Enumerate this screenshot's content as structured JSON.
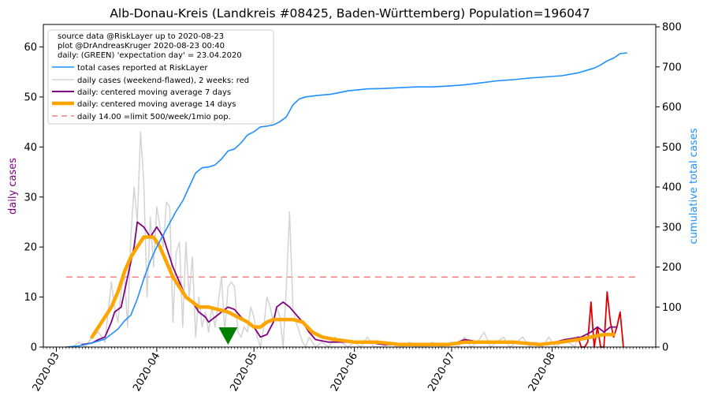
{
  "chart_data": {
    "type": "line",
    "title": "Alb-Donau-Kreis (Landkreis #08425, Baden-Württemberg) Population=196047",
    "ylabel_left": "daily cases",
    "ylabel_right": "cumulative total cases",
    "colors": {
      "total": "#1e90ff",
      "daily_raw": "#d3d3d3",
      "daily_recent": "#e00000",
      "ma7": "#800080",
      "ma14": "#ffa500",
      "limit": "#f08080",
      "expectation_marker": "#008000",
      "left_label": "#800080",
      "right_label": "#1e90ff"
    },
    "x_range": [
      "2020-02-26",
      "2020-09-02"
    ],
    "x_ticks": [
      "2020-03",
      "2020-04",
      "2020-05",
      "2020-06",
      "2020-07",
      "2020-08"
    ],
    "ylim_left": [
      0,
      64.5
    ],
    "yticks_left": [
      "0",
      "10",
      "20",
      "30",
      "40",
      "50",
      "60"
    ],
    "ylim_right": [
      0,
      806
    ],
    "yticks_right": [
      "0",
      "100",
      "200",
      "300",
      "400",
      "500",
      "600",
      "700",
      "800"
    ],
    "legend": {
      "placement": "top-left",
      "text_lines": [
        "source data @RiskLayer up to 2020-08-23",
        "plot @DrAndreasKruger 2020-08-23 00:40",
        "daily: (GREEN) 'expectation day' = 23.04.2020"
      ],
      "entries": [
        {
          "label": "total cases reported at RiskLayer",
          "series": "total"
        },
        {
          "label": "daily cases (weekend-flawed), 2 weeks: red",
          "series": "daily_raw"
        },
        {
          "label": "daily: centered moving average 7 days",
          "series": "ma7"
        },
        {
          "label": "daily: centered moving average 14 days",
          "series": "ma14"
        },
        {
          "label": "daily 14.00 =limit 500/week/1mio pop.",
          "series": "limit"
        }
      ]
    },
    "limit_value": 14.0,
    "limit_range": [
      "2020-03-04",
      "2020-08-28"
    ],
    "expectation_day": "2020-04-23",
    "series": {
      "total": [
        [
          "2020-03-04",
          0
        ],
        [
          "2020-03-08",
          3
        ],
        [
          "2020-03-12",
          10
        ],
        [
          "2020-03-16",
          20
        ],
        [
          "2020-03-20",
          45
        ],
        [
          "2020-03-22",
          65
        ],
        [
          "2020-03-24",
          80
        ],
        [
          "2020-03-26",
          120
        ],
        [
          "2020-03-28",
          170
        ],
        [
          "2020-03-30",
          215
        ],
        [
          "2020-04-01",
          250
        ],
        [
          "2020-04-03",
          280
        ],
        [
          "2020-04-05",
          310
        ],
        [
          "2020-04-07",
          340
        ],
        [
          "2020-04-09",
          365
        ],
        [
          "2020-04-11",
          400
        ],
        [
          "2020-04-13",
          435
        ],
        [
          "2020-04-15",
          448
        ],
        [
          "2020-04-17",
          450
        ],
        [
          "2020-04-19",
          455
        ],
        [
          "2020-04-21",
          470
        ],
        [
          "2020-04-23",
          490
        ],
        [
          "2020-04-25",
          495
        ],
        [
          "2020-04-27",
          510
        ],
        [
          "2020-04-29",
          530
        ],
        [
          "2020-05-01",
          538
        ],
        [
          "2020-05-03",
          550
        ],
        [
          "2020-05-05",
          552
        ],
        [
          "2020-05-07",
          555
        ],
        [
          "2020-05-09",
          563
        ],
        [
          "2020-05-11",
          575
        ],
        [
          "2020-05-13",
          605
        ],
        [
          "2020-05-15",
          620
        ],
        [
          "2020-05-17",
          625
        ],
        [
          "2020-05-20",
          628
        ],
        [
          "2020-05-25",
          632
        ],
        [
          "2020-05-30",
          640
        ],
        [
          "2020-06-05",
          645
        ],
        [
          "2020-06-10",
          646
        ],
        [
          "2020-06-15",
          648
        ],
        [
          "2020-06-20",
          650
        ],
        [
          "2020-06-25",
          650
        ],
        [
          "2020-06-30",
          652
        ],
        [
          "2020-07-05",
          655
        ],
        [
          "2020-07-10",
          660
        ],
        [
          "2020-07-15",
          665
        ],
        [
          "2020-07-20",
          668
        ],
        [
          "2020-07-25",
          672
        ],
        [
          "2020-07-30",
          675
        ],
        [
          "2020-08-04",
          678
        ],
        [
          "2020-08-09",
          685
        ],
        [
          "2020-08-12",
          692
        ],
        [
          "2020-08-14",
          697
        ],
        [
          "2020-08-16",
          705
        ],
        [
          "2020-08-18",
          715
        ],
        [
          "2020-08-20",
          722
        ],
        [
          "2020-08-22",
          733
        ],
        [
          "2020-08-24",
          735
        ]
      ],
      "daily_raw": [
        [
          "2020-03-06",
          0
        ],
        [
          "2020-03-08",
          1
        ],
        [
          "2020-03-10",
          0
        ],
        [
          "2020-03-12",
          2
        ],
        [
          "2020-03-14",
          3
        ],
        [
          "2020-03-16",
          1
        ],
        [
          "2020-03-17",
          7
        ],
        [
          "2020-03-18",
          13
        ],
        [
          "2020-03-19",
          8
        ],
        [
          "2020-03-20",
          5
        ],
        [
          "2020-03-21",
          11
        ],
        [
          "2020-03-22",
          15
        ],
        [
          "2020-03-23",
          4
        ],
        [
          "2020-03-24",
          22
        ],
        [
          "2020-03-25",
          32
        ],
        [
          "2020-03-26",
          25
        ],
        [
          "2020-03-27",
          43
        ],
        [
          "2020-03-28",
          33
        ],
        [
          "2020-03-29",
          10
        ],
        [
          "2020-03-30",
          26
        ],
        [
          "2020-03-31",
          16
        ],
        [
          "2020-04-01",
          28
        ],
        [
          "2020-04-02",
          24
        ],
        [
          "2020-04-03",
          20
        ],
        [
          "2020-04-04",
          29
        ],
        [
          "2020-04-05",
          28
        ],
        [
          "2020-04-06",
          5
        ],
        [
          "2020-04-07",
          19
        ],
        [
          "2020-04-08",
          21
        ],
        [
          "2020-04-09",
          4
        ],
        [
          "2020-04-10",
          21
        ],
        [
          "2020-04-11",
          10
        ],
        [
          "2020-04-12",
          18
        ],
        [
          "2020-04-13",
          2
        ],
        [
          "2020-04-14",
          10
        ],
        [
          "2020-04-15",
          4
        ],
        [
          "2020-04-16",
          7
        ],
        [
          "2020-04-17",
          3
        ],
        [
          "2020-04-18",
          8
        ],
        [
          "2020-04-19",
          4
        ],
        [
          "2020-04-20",
          9
        ],
        [
          "2020-04-21",
          14
        ],
        [
          "2020-04-22",
          3
        ],
        [
          "2020-04-23",
          12
        ],
        [
          "2020-04-24",
          13
        ],
        [
          "2020-04-25",
          12
        ],
        [
          "2020-04-26",
          3
        ],
        [
          "2020-04-27",
          2
        ],
        [
          "2020-04-28",
          4
        ],
        [
          "2020-04-29",
          3
        ],
        [
          "2020-04-30",
          8
        ],
        [
          "2020-05-01",
          6
        ],
        [
          "2020-05-02",
          2
        ],
        [
          "2020-05-03",
          0
        ],
        [
          "2020-05-04",
          4
        ],
        [
          "2020-05-05",
          10
        ],
        [
          "2020-05-06",
          8
        ],
        [
          "2020-05-07",
          5
        ],
        [
          "2020-05-08",
          8
        ],
        [
          "2020-05-09",
          6
        ],
        [
          "2020-05-10",
          0
        ],
        [
          "2020-05-11",
          12
        ],
        [
          "2020-05-12",
          27
        ],
        [
          "2020-05-13",
          8
        ],
        [
          "2020-05-14",
          5
        ],
        [
          "2020-05-15",
          3
        ],
        [
          "2020-05-16",
          1
        ],
        [
          "2020-05-17",
          0
        ],
        [
          "2020-05-18",
          2
        ],
        [
          "2020-05-19",
          1
        ],
        [
          "2020-05-20",
          0
        ],
        [
          "2020-05-22",
          1
        ],
        [
          "2020-05-24",
          0
        ],
        [
          "2020-05-26",
          2
        ],
        [
          "2020-05-28",
          1
        ],
        [
          "2020-05-30",
          0
        ],
        [
          "2020-06-01",
          1
        ],
        [
          "2020-06-03",
          0
        ],
        [
          "2020-06-05",
          2
        ],
        [
          "2020-06-06",
          1
        ],
        [
          "2020-06-07",
          0
        ],
        [
          "2020-06-10",
          0
        ],
        [
          "2020-06-12",
          1
        ],
        [
          "2020-06-14",
          0
        ],
        [
          "2020-06-16",
          0
        ],
        [
          "2020-06-18",
          1
        ],
        [
          "2020-06-20",
          0
        ],
        [
          "2020-06-23",
          0
        ],
        [
          "2020-06-25",
          1
        ],
        [
          "2020-06-28",
          0
        ],
        [
          "2020-07-01",
          1
        ],
        [
          "2020-07-03",
          0
        ],
        [
          "2020-07-05",
          2
        ],
        [
          "2020-07-07",
          0
        ],
        [
          "2020-07-09",
          1
        ],
        [
          "2020-07-11",
          3
        ],
        [
          "2020-07-13",
          0
        ],
        [
          "2020-07-15",
          1
        ],
        [
          "2020-07-17",
          2
        ],
        [
          "2020-07-19",
          0
        ],
        [
          "2020-07-21",
          1
        ],
        [
          "2020-07-23",
          2
        ],
        [
          "2020-07-25",
          0
        ],
        [
          "2020-07-27",
          1
        ],
        [
          "2020-07-29",
          0
        ],
        [
          "2020-07-31",
          2
        ],
        [
          "2020-08-02",
          0
        ],
        [
          "2020-08-04",
          1
        ],
        [
          "2020-08-06",
          1
        ],
        [
          "2020-08-08",
          0
        ],
        [
          "2020-08-09",
          2
        ]
      ],
      "daily_recent": [
        [
          "2020-08-09",
          2
        ],
        [
          "2020-08-10",
          0
        ],
        [
          "2020-08-11",
          0
        ],
        [
          "2020-08-12",
          1
        ],
        [
          "2020-08-13",
          9
        ],
        [
          "2020-08-14",
          0
        ],
        [
          "2020-08-15",
          4
        ],
        [
          "2020-08-16",
          0
        ],
        [
          "2020-08-17",
          0
        ],
        [
          "2020-08-18",
          11
        ],
        [
          "2020-08-19",
          5
        ],
        [
          "2020-08-20",
          2
        ],
        [
          "2020-08-21",
          4
        ],
        [
          "2020-08-22",
          7
        ],
        [
          "2020-08-23",
          0
        ]
      ],
      "ma7": [
        [
          "2020-03-09",
          0.5
        ],
        [
          "2020-03-12",
          0.8
        ],
        [
          "2020-03-14",
          1.5
        ],
        [
          "2020-03-16",
          2
        ],
        [
          "2020-03-18",
          5
        ],
        [
          "2020-03-19",
          7
        ],
        [
          "2020-03-21",
          8
        ],
        [
          "2020-03-23",
          14
        ],
        [
          "2020-03-25",
          20
        ],
        [
          "2020-03-26",
          25
        ],
        [
          "2020-03-28",
          24
        ],
        [
          "2020-03-29",
          23
        ],
        [
          "2020-03-30",
          22
        ],
        [
          "2020-04-01",
          24
        ],
        [
          "2020-04-03",
          22
        ],
        [
          "2020-04-05",
          18
        ],
        [
          "2020-04-06",
          16
        ],
        [
          "2020-04-08",
          13
        ],
        [
          "2020-04-10",
          10
        ],
        [
          "2020-04-12",
          9
        ],
        [
          "2020-04-14",
          7
        ],
        [
          "2020-04-16",
          6
        ],
        [
          "2020-04-17",
          5
        ],
        [
          "2020-04-19",
          6
        ],
        [
          "2020-04-21",
          7
        ],
        [
          "2020-04-23",
          8
        ],
        [
          "2020-04-25",
          7.5
        ],
        [
          "2020-04-27",
          6
        ],
        [
          "2020-04-29",
          5
        ],
        [
          "2020-05-01",
          4
        ],
        [
          "2020-05-03",
          2
        ],
        [
          "2020-05-05",
          2.5
        ],
        [
          "2020-05-07",
          5
        ],
        [
          "2020-05-08",
          8
        ],
        [
          "2020-05-10",
          9
        ],
        [
          "2020-05-12",
          8
        ],
        [
          "2020-05-14",
          6.5
        ],
        [
          "2020-05-16",
          5
        ],
        [
          "2020-05-18",
          3
        ],
        [
          "2020-05-20",
          1.5
        ],
        [
          "2020-05-24",
          1
        ],
        [
          "2020-05-30",
          1
        ],
        [
          "2020-06-05",
          1
        ],
        [
          "2020-06-10",
          0.5
        ],
        [
          "2020-06-20",
          0.5
        ],
        [
          "2020-07-01",
          0.5
        ],
        [
          "2020-07-05",
          1.5
        ],
        [
          "2020-07-10",
          1
        ],
        [
          "2020-07-20",
          1
        ],
        [
          "2020-07-30",
          0.5
        ],
        [
          "2020-08-05",
          1.5
        ],
        [
          "2020-08-10",
          2
        ],
        [
          "2020-08-13",
          3
        ],
        [
          "2020-08-15",
          4
        ],
        [
          "2020-08-17",
          3
        ],
        [
          "2020-08-19",
          4
        ],
        [
          "2020-08-21",
          4
        ]
      ],
      "ma14": [
        [
          "2020-03-12",
          2
        ],
        [
          "2020-03-14",
          4
        ],
        [
          "2020-03-16",
          6
        ],
        [
          "2020-03-18",
          8
        ],
        [
          "2020-03-20",
          11
        ],
        [
          "2020-03-22",
          15
        ],
        [
          "2020-03-24",
          18
        ],
        [
          "2020-03-26",
          20
        ],
        [
          "2020-03-28",
          22
        ],
        [
          "2020-03-31",
          22
        ],
        [
          "2020-04-02",
          20
        ],
        [
          "2020-04-04",
          17
        ],
        [
          "2020-04-06",
          14
        ],
        [
          "2020-04-08",
          12
        ],
        [
          "2020-04-10",
          10
        ],
        [
          "2020-04-12",
          9
        ],
        [
          "2020-04-14",
          8
        ],
        [
          "2020-04-17",
          8
        ],
        [
          "2020-04-20",
          7.5
        ],
        [
          "2020-04-23",
          7
        ],
        [
          "2020-04-26",
          6
        ],
        [
          "2020-04-29",
          5
        ],
        [
          "2020-05-01",
          4
        ],
        [
          "2020-05-03",
          4
        ],
        [
          "2020-05-05",
          5
        ],
        [
          "2020-05-07",
          5.5
        ],
        [
          "2020-05-10",
          5.5
        ],
        [
          "2020-05-13",
          5.5
        ],
        [
          "2020-05-16",
          5
        ],
        [
          "2020-05-19",
          3
        ],
        [
          "2020-05-22",
          2
        ],
        [
          "2020-05-26",
          1.5
        ],
        [
          "2020-06-01",
          1
        ],
        [
          "2020-06-08",
          1
        ],
        [
          "2020-06-15",
          0.5
        ],
        [
          "2020-06-22",
          0.5
        ],
        [
          "2020-06-30",
          0.5
        ],
        [
          "2020-07-05",
          1
        ],
        [
          "2020-07-12",
          1
        ],
        [
          "2020-07-20",
          1
        ],
        [
          "2020-07-28",
          0.5
        ],
        [
          "2020-08-04",
          1
        ],
        [
          "2020-08-09",
          1.5
        ],
        [
          "2020-08-13",
          2
        ],
        [
          "2020-08-17",
          2.5
        ],
        [
          "2020-08-20",
          2.5
        ]
      ]
    }
  }
}
